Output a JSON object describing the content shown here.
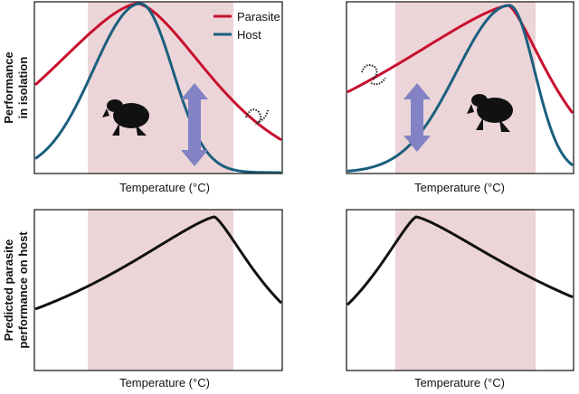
{
  "panels": [
    {
      "x_label": "Temperature (°C)"
    },
    {
      "x_label": "Temperature (°C)"
    },
    {
      "x_label": "Temperature (°C)"
    },
    {
      "x_label": "Temperature (°C)"
    }
  ],
  "y_labels": [
    {
      "lines": [
        "Performance",
        "in isolation"
      ]
    },
    {
      "lines": [
        "Predicted parasite",
        "performance on host"
      ]
    }
  ],
  "legend": [
    {
      "name": "Parasite",
      "color": "#c8102e"
    },
    {
      "name": "Host",
      "color": "#1b5f7e"
    }
  ]
}
